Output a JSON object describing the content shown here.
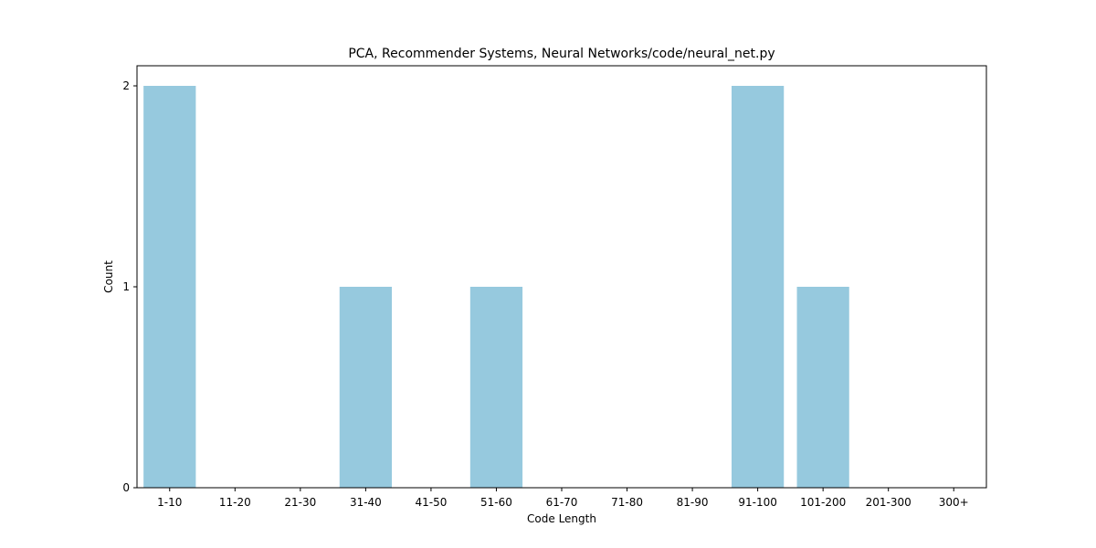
{
  "chart_data": {
    "type": "bar",
    "title": "PCA, Recommender Systems, Neural Networks/code/neural_net.py",
    "xlabel": "Code Length",
    "ylabel": "Count",
    "categories": [
      "1-10",
      "11-20",
      "21-30",
      "31-40",
      "41-50",
      "51-60",
      "61-70",
      "71-80",
      "81-90",
      "91-100",
      "101-200",
      "201-300",
      "300+"
    ],
    "values": [
      2,
      0,
      0,
      1,
      0,
      1,
      0,
      0,
      0,
      2,
      1,
      0,
      0
    ],
    "ylim": [
      0,
      2.1
    ],
    "yticks": [
      0,
      1,
      2
    ],
    "bar_color": "#96c9de",
    "grid": false,
    "legend": "none"
  }
}
